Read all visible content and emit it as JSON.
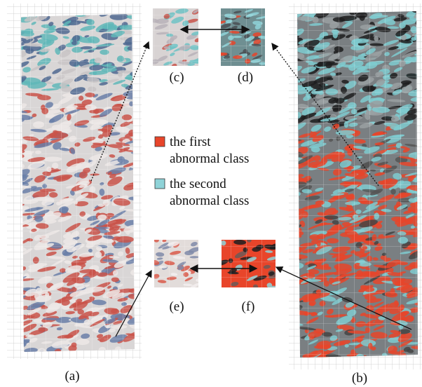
{
  "panels": {
    "a": "(a)",
    "b": "(b)",
    "c": "(c)",
    "d": "(d)",
    "e": "(e)",
    "f": "(f)"
  },
  "legend": [
    {
      "lines": [
        "the first",
        "abnormal class"
      ],
      "color": "#e8452a"
    },
    {
      "lines": [
        "the second",
        "abnormal class"
      ],
      "color": "#8fd3d8"
    }
  ]
}
